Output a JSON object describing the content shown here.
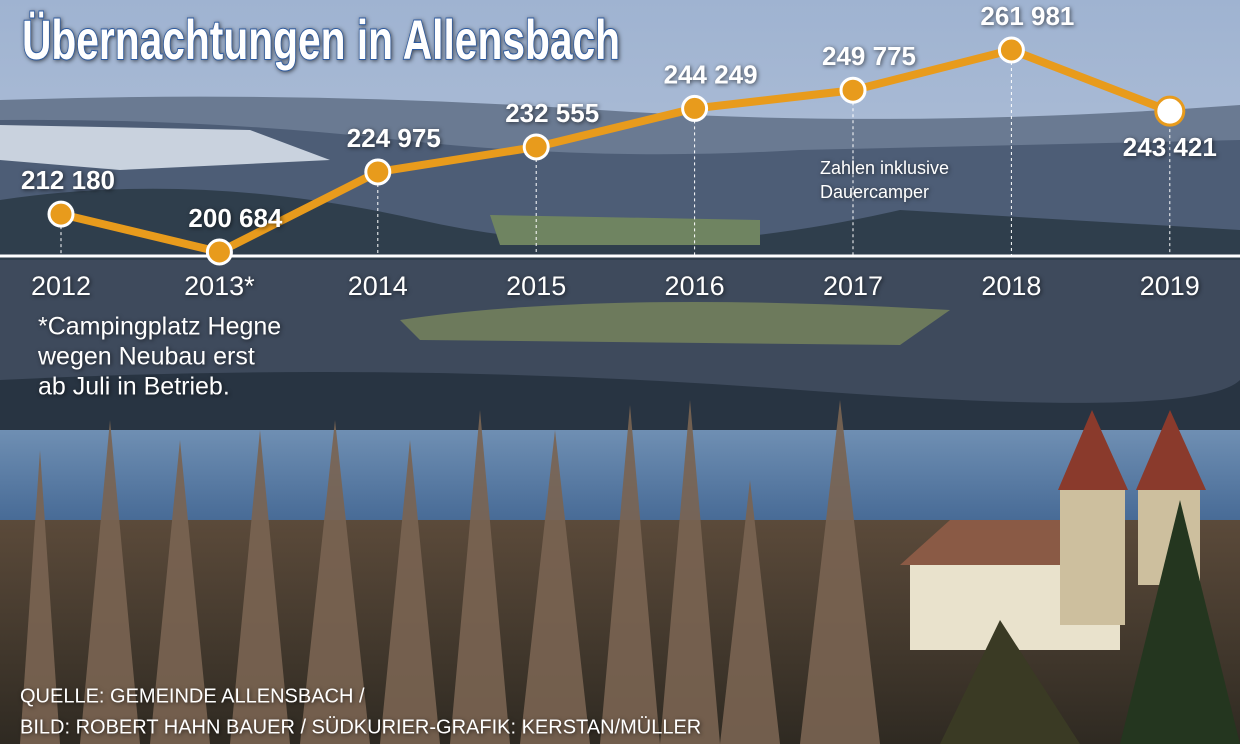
{
  "chart_data": {
    "type": "line",
    "title": "Übernachtungen in Allensbach",
    "categories": [
      "2012",
      "2013*",
      "2014",
      "2015",
      "2016",
      "2017",
      "2018",
      "2019"
    ],
    "series": [
      {
        "color": "#e89b1c",
        "values": [
          212180,
          200684,
          224975,
          232555,
          244249,
          249775,
          261981,
          243421
        ],
        "value_labels": [
          "212 180",
          "200 684",
          "224 975",
          "232 555",
          "244 249",
          "249 775",
          "261 981",
          "243 421"
        ]
      }
    ],
    "annotation": [
      "Zahlen inklusive",
      "Dauercamper"
    ],
    "footnote": [
      "*Campingplatz Hegne",
      "wegen Neubau erst",
      "ab Juli in Betrieb."
    ],
    "source": [
      "QUELLE: GEMEINDE ALLENSBACH /",
      "BILD: ROBERT HAHN BAUER / SÜDKURIER-GRAFIK: KERSTAN/MÜLLER"
    ]
  }
}
